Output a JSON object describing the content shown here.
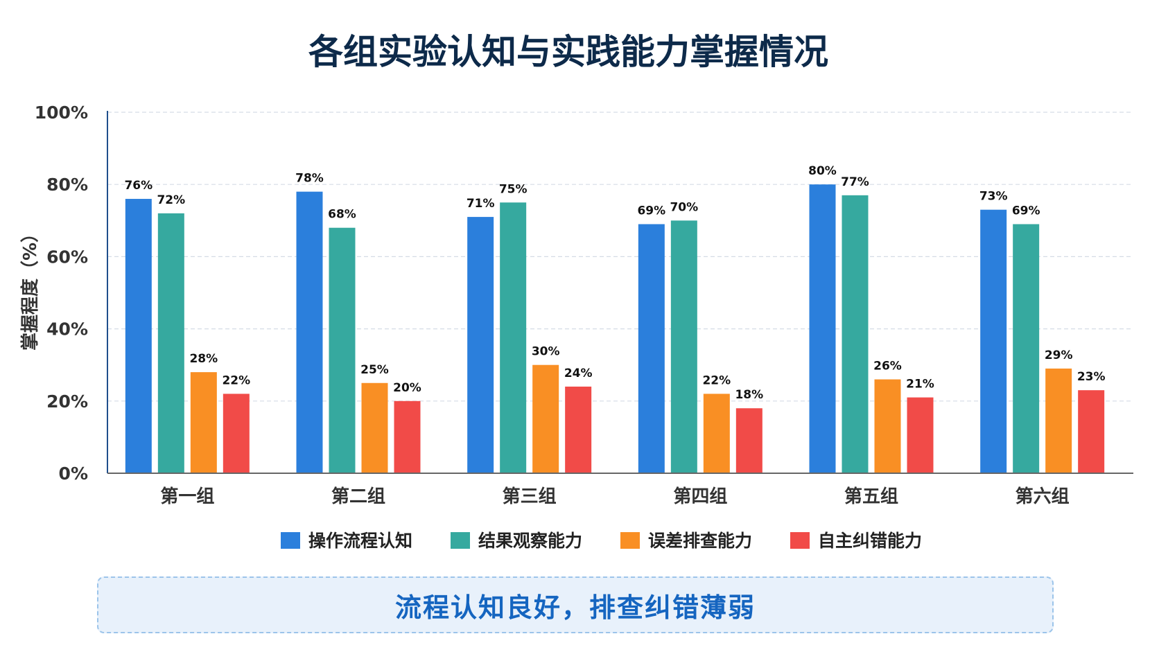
{
  "chart_data": {
    "type": "bar",
    "title": "各组实验认知与实践能力掌握情况",
    "ylabel": "掌握程度（%）",
    "xlabel": "",
    "ylim": [
      0,
      100
    ],
    "yticks": [
      "0%",
      "20%",
      "40%",
      "60%",
      "80%",
      "100%"
    ],
    "grid": true,
    "legend_position": "bottom",
    "categories": [
      "第一组",
      "第二组",
      "第三组",
      "第四组",
      "第五组",
      "第六组"
    ],
    "series": [
      {
        "name": "操作流程认知",
        "color": "#2b7fdc",
        "values": [
          76,
          78,
          71,
          69,
          80,
          73
        ]
      },
      {
        "name": "结果观察能力",
        "color": "#36a99f",
        "values": [
          72,
          68,
          75,
          70,
          77,
          69
        ]
      },
      {
        "name": "误差排查能力",
        "color": "#f98f24",
        "values": [
          28,
          25,
          30,
          22,
          26,
          29
        ]
      },
      {
        "name": "自主纠错能力",
        "color": "#f14b48",
        "values": [
          22,
          20,
          24,
          18,
          21,
          23
        ]
      }
    ],
    "value_labels": [
      [
        "76%",
        "72%",
        "28%",
        "22%"
      ],
      [
        "78%",
        "68%",
        "25%",
        "20%"
      ],
      [
        "71%",
        "75%",
        "30%",
        "24%"
      ],
      [
        "69%",
        "70%",
        "22%",
        "18%"
      ],
      [
        "80%",
        "77%",
        "26%",
        "21%"
      ],
      [
        "73%",
        "69%",
        "29%",
        "23%"
      ]
    ]
  },
  "conclusion": "流程认知良好，排查纠错薄弱",
  "colors": {
    "title": "#0d2a4a",
    "axis": "#1f4e8c",
    "grid": "#d5dce6",
    "conclusion_text": "#1565c0",
    "conclusion_bg": "#e8f1fb"
  }
}
